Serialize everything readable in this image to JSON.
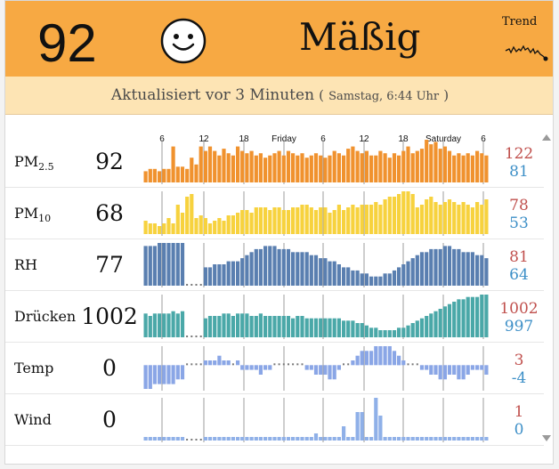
{
  "header": {
    "aqi": "92",
    "status": "Mäßig",
    "trend_label": "Trend",
    "face": "smiley-face",
    "background": "#f7a943"
  },
  "update": {
    "text": "Aktualisiert vor 3 Minuten",
    "open": "(",
    "date": "Samstag, 6:44 Uhr",
    "close": ")"
  },
  "axis": {
    "ticks": [
      "6",
      "12",
      "18",
      "Friday",
      "6",
      "12",
      "18",
      "Saturday",
      "6"
    ]
  },
  "rows": [
    {
      "key": "pm25",
      "label": "PM",
      "sub": "2.5",
      "value": "92",
      "max": "122",
      "min": "81",
      "color": "#f0922e",
      "gap": false,
      "series": [
        5,
        6,
        6,
        5,
        6,
        6,
        16,
        7,
        7,
        6,
        11,
        8,
        16,
        14,
        16,
        14,
        12,
        15,
        13,
        12,
        16,
        14,
        13,
        14,
        12,
        13,
        11,
        12,
        13,
        14,
        12,
        14,
        13,
        12,
        13,
        11,
        12,
        13,
        12,
        11,
        12,
        14,
        13,
        12,
        15,
        16,
        14,
        13,
        14,
        12,
        12,
        14,
        13,
        11,
        13,
        12,
        14,
        16,
        13,
        14,
        15,
        19,
        17,
        18,
        15,
        16,
        14,
        12,
        13,
        12,
        13,
        12,
        14,
        13,
        12
      ]
    },
    {
      "key": "pm10",
      "label": "PM",
      "sub": "10",
      "value": "68",
      "max": "78",
      "min": "53",
      "color": "#f7d23e",
      "gap": false,
      "series": [
        5,
        4,
        4,
        3,
        4,
        6,
        4,
        11,
        8,
        14,
        15,
        6,
        7,
        6,
        4,
        5,
        6,
        5,
        7,
        7,
        8,
        9,
        9,
        8,
        10,
        10,
        10,
        9,
        10,
        10,
        9,
        9,
        10,
        10,
        11,
        11,
        10,
        9,
        10,
        10,
        8,
        9,
        11,
        9,
        10,
        11,
        10,
        11,
        11,
        11,
        12,
        11,
        13,
        14,
        14,
        15,
        16,
        16,
        15,
        10,
        11,
        13,
        14,
        12,
        11,
        12,
        13,
        12,
        11,
        12,
        11,
        10,
        12,
        11,
        13
      ]
    },
    {
      "key": "rh",
      "label": "RH",
      "sub": "",
      "value": "77",
      "max": "81",
      "min": "64",
      "color": "#5a7fb0",
      "gap": true,
      "series": [
        13,
        13,
        13,
        14,
        14,
        14,
        14,
        14,
        14,
        0,
        0,
        0,
        0,
        6,
        6,
        7,
        7,
        7,
        8,
        8,
        8,
        9,
        10,
        11,
        12,
        12,
        13,
        13,
        13,
        12,
        12,
        12,
        11,
        11,
        11,
        11,
        10,
        10,
        9,
        9,
        8,
        8,
        7,
        6,
        6,
        5,
        5,
        4,
        4,
        3,
        3,
        3,
        4,
        4,
        5,
        6,
        7,
        8,
        9,
        10,
        11,
        11,
        12,
        12,
        12,
        13,
        13,
        12,
        12,
        11,
        11,
        11,
        10,
        10,
        9
      ]
    },
    {
      "key": "pressure",
      "label": "Drücken",
      "sub": "",
      "value": "1002",
      "max": "1002",
      "min": "997",
      "color": "#4aa8a8",
      "gap": true,
      "series": [
        10,
        9,
        10,
        10,
        10,
        10,
        11,
        10,
        11,
        0,
        0,
        0,
        0,
        8,
        9,
        9,
        9,
        10,
        10,
        9,
        10,
        10,
        10,
        9,
        9,
        10,
        9,
        9,
        9,
        9,
        9,
        9,
        8,
        9,
        9,
        8,
        8,
        8,
        8,
        8,
        8,
        8,
        8,
        7,
        7,
        7,
        6,
        6,
        5,
        4,
        4,
        3,
        3,
        3,
        3,
        4,
        4,
        5,
        6,
        7,
        8,
        9,
        10,
        11,
        12,
        13,
        14,
        15,
        16,
        16,
        17,
        17,
        17,
        18,
        18
      ]
    },
    {
      "key": "temp",
      "label": "Temp",
      "sub": "",
      "value": "0",
      "max": "3",
      "min": "-4",
      "color": "#8aa6e6",
      "gap": true,
      "series": [
        -5,
        -5,
        -4,
        -4,
        -4,
        -4,
        -4,
        -3,
        -3,
        0,
        0,
        0,
        0,
        1,
        1,
        1,
        2,
        1,
        1,
        0,
        1,
        -1,
        -1,
        -1,
        -1,
        -2,
        -1,
        -1,
        0,
        0,
        0,
        0,
        0,
        0,
        0,
        -1,
        -1,
        -2,
        -2,
        -2,
        -3,
        -3,
        -1,
        0,
        0,
        1,
        2,
        3,
        3,
        3,
        4,
        4,
        4,
        4,
        3,
        2,
        1,
        0,
        0,
        0,
        -1,
        -1,
        -2,
        -2,
        -3,
        -3,
        -2,
        -2,
        -3,
        -3,
        -2,
        -1,
        -1,
        -1,
        -2
      ]
    },
    {
      "key": "wind",
      "label": "Wind",
      "sub": "",
      "value": "0",
      "max": "1",
      "min": "0",
      "color": "#8fb0e8",
      "gap": true,
      "series": [
        1,
        1,
        1,
        1,
        1,
        1,
        1,
        1,
        1,
        0,
        0,
        0,
        0,
        1,
        1,
        1,
        1,
        1,
        1,
        1,
        1,
        1,
        1,
        1,
        1,
        1,
        1,
        1,
        1,
        1,
        1,
        1,
        1,
        1,
        1,
        1,
        1,
        2,
        1,
        1,
        1,
        1,
        1,
        4,
        1,
        1,
        8,
        8,
        1,
        1,
        12,
        7,
        1,
        1,
        1,
        1,
        1,
        1,
        1,
        1,
        1,
        1,
        1,
        1,
        1,
        1,
        1,
        1,
        1,
        1,
        1,
        1,
        1,
        1,
        1
      ]
    }
  ]
}
